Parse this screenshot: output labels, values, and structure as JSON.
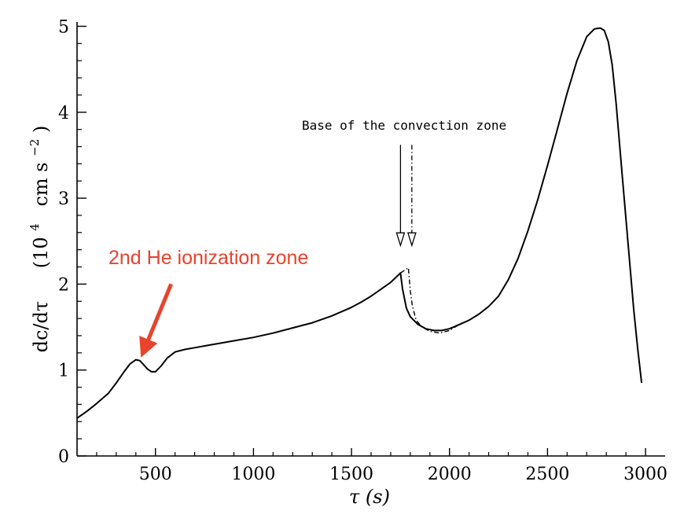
{
  "chart_data": {
    "type": "line",
    "title": "",
    "xlabel": "τ (s)",
    "ylabel": "dc/dτ (10⁴ cm s⁻²)",
    "ylabel_parts": {
      "main": "dc/dτ",
      "unit_pre": "(10",
      "unit_exp": "4",
      "unit_mid": "cm s",
      "unit_exp2": "−2",
      "unit_post": ")"
    },
    "xlim": [
      100,
      3100
    ],
    "ylim": [
      0,
      5.05
    ],
    "xticks": [
      500,
      1000,
      1500,
      2000,
      2500,
      3000
    ],
    "yticks": [
      0,
      1,
      2,
      3,
      4,
      5
    ],
    "grid": false,
    "colors": {
      "curve": "#000000",
      "annotation": "#e8432d"
    },
    "series": [
      {
        "style": "solid",
        "x": [
          100,
          150,
          200,
          260,
          300,
          340,
          370,
          400,
          420,
          440,
          460,
          480,
          500,
          530,
          560,
          600,
          650,
          700,
          800,
          900,
          1000,
          1100,
          1200,
          1300,
          1400,
          1500,
          1550,
          1600,
          1650,
          1700,
          1750,
          1760,
          1780,
          1800,
          1840,
          1880,
          1920,
          1960,
          2000,
          2050,
          2100,
          2150,
          2200,
          2250,
          2300,
          2350,
          2400,
          2450,
          2500,
          2550,
          2600,
          2650,
          2700,
          2740,
          2770,
          2790,
          2810,
          2830,
          2850,
          2880,
          2910,
          2940,
          2960,
          2980
        ],
        "y": [
          0.44,
          0.52,
          0.61,
          0.73,
          0.85,
          0.98,
          1.07,
          1.12,
          1.11,
          1.06,
          1.01,
          0.98,
          0.98,
          1.05,
          1.14,
          1.21,
          1.24,
          1.26,
          1.3,
          1.34,
          1.38,
          1.43,
          1.49,
          1.55,
          1.63,
          1.73,
          1.79,
          1.86,
          1.94,
          2.02,
          2.13,
          1.95,
          1.72,
          1.62,
          1.53,
          1.48,
          1.46,
          1.46,
          1.48,
          1.53,
          1.58,
          1.65,
          1.74,
          1.86,
          2.05,
          2.3,
          2.62,
          2.98,
          3.38,
          3.8,
          4.22,
          4.6,
          4.88,
          4.97,
          4.98,
          4.95,
          4.82,
          4.55,
          4.1,
          3.3,
          2.5,
          1.7,
          1.25,
          0.85
        ]
      },
      {
        "style": "dash-dot",
        "x": [
          1750,
          1770,
          1790,
          1800,
          1810,
          1830,
          1860,
          1900,
          1950,
          2000,
          2050
        ],
        "y": [
          2.13,
          2.16,
          2.19,
          1.92,
          1.75,
          1.58,
          1.5,
          1.45,
          1.43,
          1.46,
          1.53
        ]
      }
    ],
    "annotations": [
      {
        "id": "convection",
        "text": "Base of the  convection zone",
        "arrows": [
          {
            "style": "solid",
            "x": 1750,
            "y_from": 3.62,
            "y_to": 2.45
          },
          {
            "style": "dash-dot",
            "x": 1808,
            "y_from": 3.62,
            "y_to": 2.45
          }
        ]
      },
      {
        "id": "helium",
        "text": "2nd He ionization zone",
        "arrow": {
          "x_from": 580,
          "y_from": 2.0,
          "x_to": 445,
          "y_to": 1.25
        }
      }
    ]
  }
}
